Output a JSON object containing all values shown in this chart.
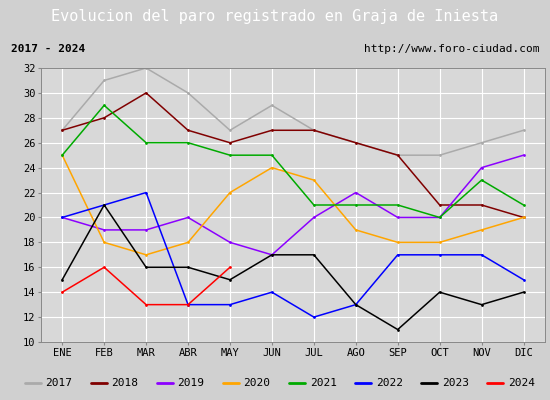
{
  "title": "Evolucion del paro registrado en Graja de Iniesta",
  "subtitle_left": "2017 - 2024",
  "subtitle_right": "http://www.foro-ciudad.com",
  "xlabel_months": [
    "ENE",
    "FEB",
    "MAR",
    "ABR",
    "MAY",
    "JUN",
    "JUL",
    "AGO",
    "SEP",
    "OCT",
    "NOV",
    "DIC"
  ],
  "ylim": [
    10,
    32
  ],
  "yticks": [
    10,
    12,
    14,
    16,
    18,
    20,
    22,
    24,
    26,
    28,
    30,
    32
  ],
  "series": {
    "2017": {
      "color": "#aaaaaa",
      "values": [
        27,
        31,
        32,
        30,
        27,
        29,
        27,
        26,
        25,
        25,
        26,
        27
      ]
    },
    "2018": {
      "color": "#800000",
      "values": [
        27,
        28,
        30,
        27,
        26,
        27,
        27,
        26,
        25,
        21,
        21,
        20
      ]
    },
    "2019": {
      "color": "#8b00ff",
      "values": [
        20,
        19,
        19,
        20,
        18,
        17,
        20,
        22,
        20,
        20,
        24,
        25
      ]
    },
    "2020": {
      "color": "#ffa500",
      "values": [
        25,
        18,
        17,
        18,
        22,
        24,
        23,
        19,
        18,
        18,
        19,
        20
      ]
    },
    "2021": {
      "color": "#00aa00",
      "values": [
        25,
        29,
        26,
        26,
        25,
        25,
        21,
        21,
        21,
        20,
        23,
        21
      ]
    },
    "2022": {
      "color": "#0000ff",
      "values": [
        20,
        21,
        22,
        13,
        13,
        14,
        12,
        13,
        17,
        17,
        17,
        15
      ]
    },
    "2023": {
      "color": "#000000",
      "values": [
        15,
        21,
        16,
        16,
        15,
        17,
        17,
        13,
        11,
        14,
        13,
        14
      ]
    },
    "2024": {
      "color": "#ff0000",
      "values": [
        14,
        16,
        13,
        13,
        16,
        null,
        null,
        null,
        null,
        null,
        null,
        null
      ]
    }
  },
  "title_bg_color": "#4472c4",
  "title_color": "#ffffff",
  "subtitle_bg_color": "#d8d8d8",
  "plot_bg_color": "#d8d8d8",
  "grid_color": "#ffffff",
  "legend_bg_color": "#e8e8e8",
  "outer_bg_color": "#d0d0d0",
  "title_fontsize": 11,
  "subtitle_fontsize": 8,
  "tick_fontsize": 7.5,
  "legend_fontsize": 8
}
